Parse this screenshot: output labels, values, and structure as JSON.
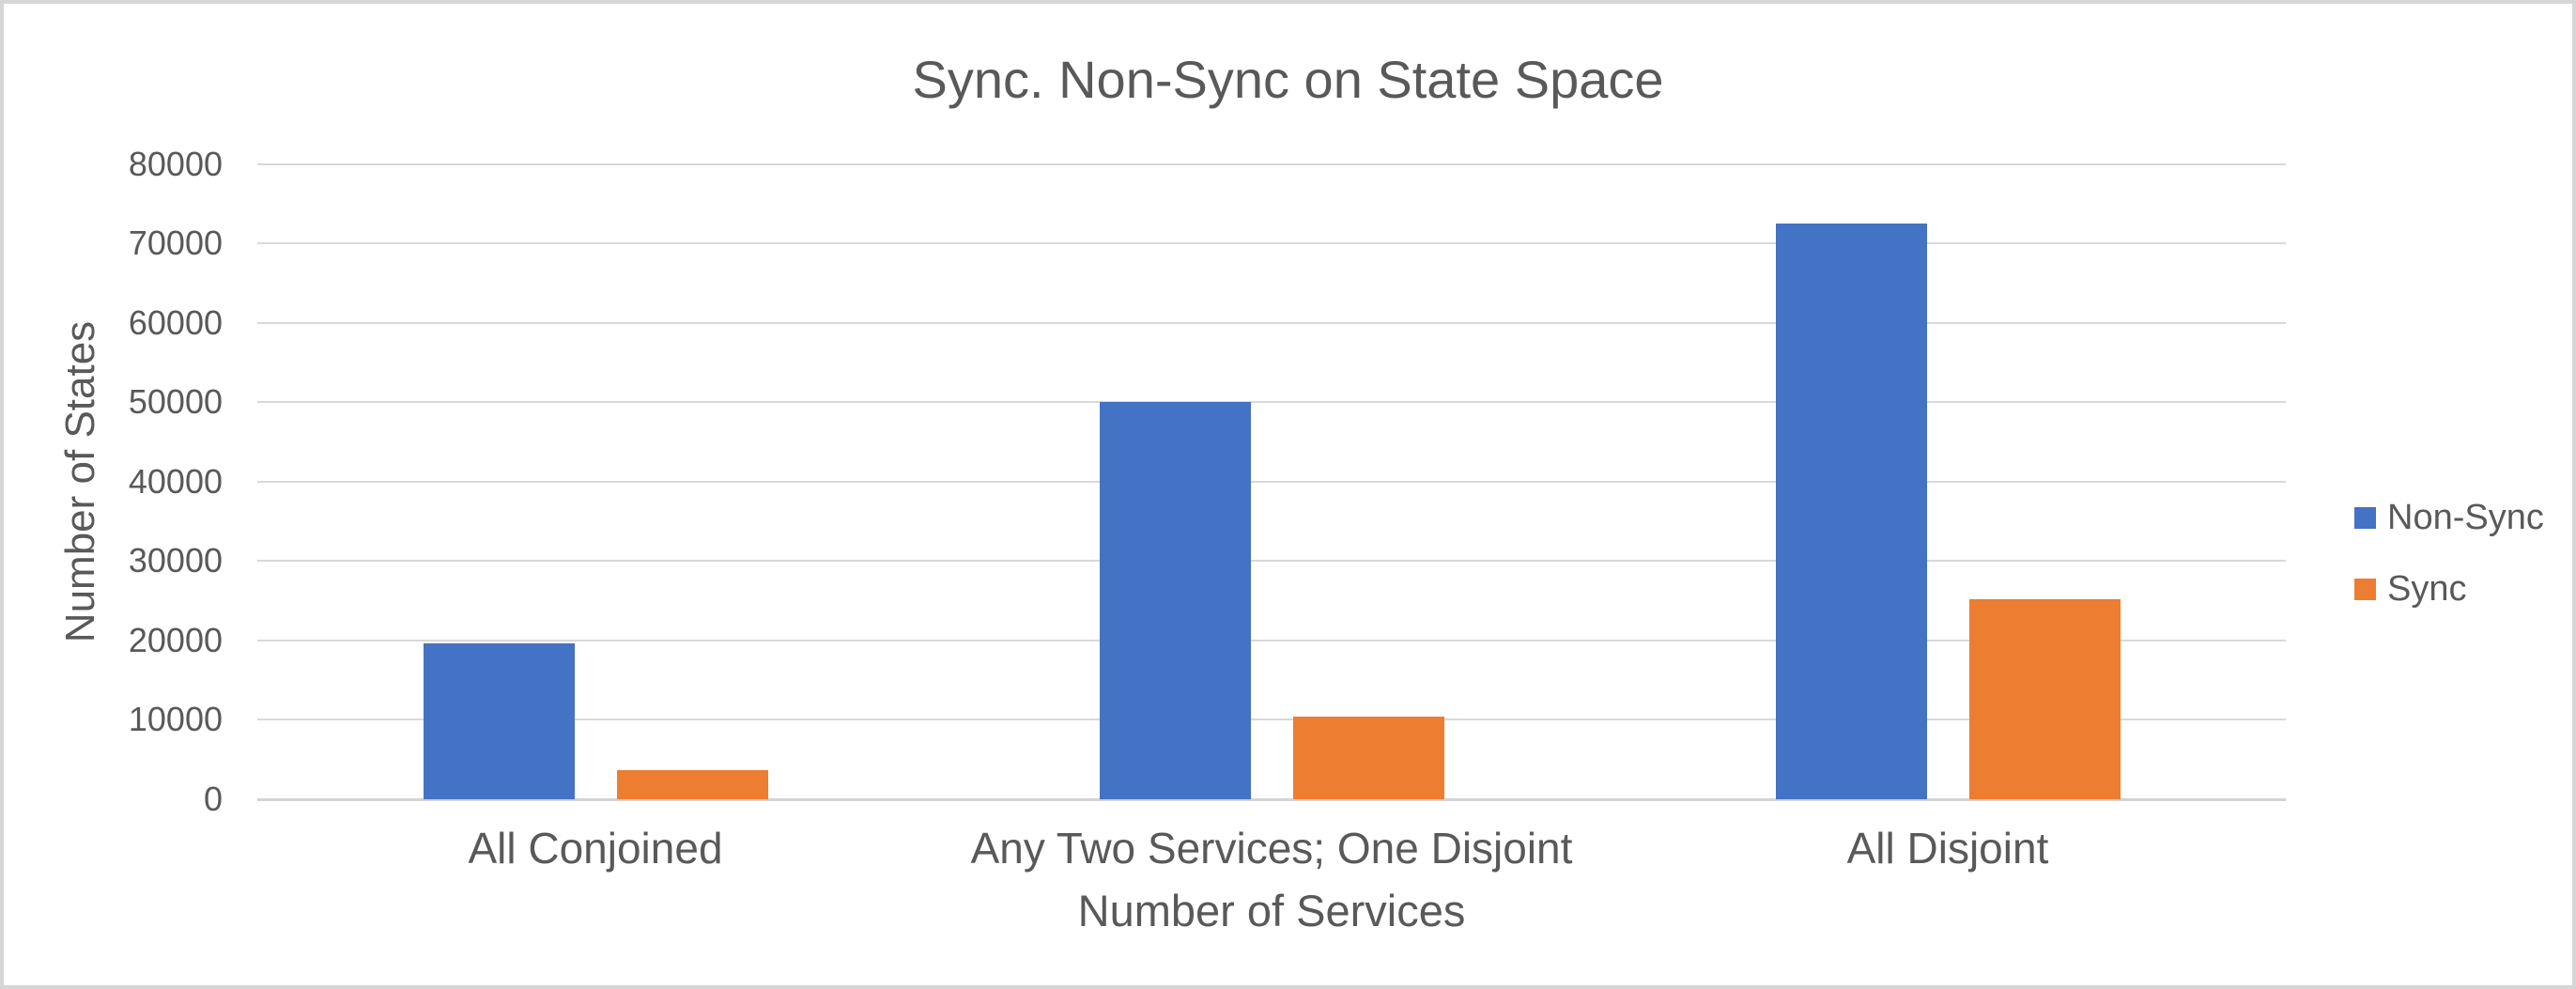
{
  "chart_data": {
    "type": "bar",
    "title": "Sync. Non-Sync on State Space",
    "xlabel": "Number of Services",
    "ylabel": "Number of States",
    "categories": [
      "All Conjoined",
      "Any Two Services; One Disjoint",
      "All Disjoint"
    ],
    "series": [
      {
        "name": "Non-Sync",
        "color": "#4472c4",
        "values": [
          19600,
          50000,
          72500
        ]
      },
      {
        "name": "Sync",
        "color": "#ed7d31",
        "values": [
          3700,
          10400,
          25200
        ]
      }
    ],
    "ylim": [
      0,
      80000
    ],
    "ytick_step": 10000,
    "ytick_labels": [
      "0",
      "10000",
      "20000",
      "30000",
      "40000",
      "50000",
      "60000",
      "70000",
      "80000"
    ],
    "grid": true,
    "legend_position": "right",
    "colors": {
      "text": "#595959",
      "gridline": "#d9d9d9",
      "chart_border": "#d6d6d6",
      "background": "#ffffff"
    }
  }
}
